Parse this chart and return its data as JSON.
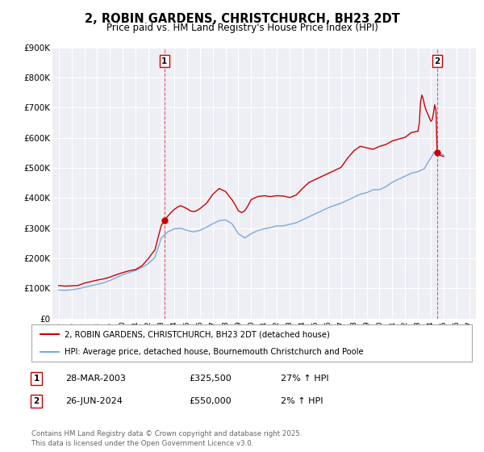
{
  "title": "2, ROBIN GARDENS, CHRISTCHURCH, BH23 2DT",
  "subtitle": "Price paid vs. HM Land Registry's House Price Index (HPI)",
  "title_fontsize": 10.5,
  "subtitle_fontsize": 9,
  "background_color": "#ffffff",
  "plot_bg_color": "#eeeef5",
  "grid_color": "#ffffff",
  "red_line_color": "#cc0000",
  "blue_line_color": "#7aaadd",
  "marker1_year": 2003.23,
  "marker1_value": 325500,
  "marker2_year": 2024.49,
  "marker2_value": 550000,
  "vline1_year": 2003.23,
  "vline2_year": 2024.49,
  "ylim": [
    0,
    900000
  ],
  "xlim": [
    1994.5,
    2027.5
  ],
  "ytick_labels": [
    "£0",
    "£100K",
    "£200K",
    "£300K",
    "£400K",
    "£500K",
    "£600K",
    "£700K",
    "£800K",
    "£900K"
  ],
  "ytick_values": [
    0,
    100000,
    200000,
    300000,
    400000,
    500000,
    600000,
    700000,
    800000,
    900000
  ],
  "xtick_values": [
    1995,
    1996,
    1997,
    1998,
    1999,
    2000,
    2001,
    2002,
    2003,
    2004,
    2005,
    2006,
    2007,
    2008,
    2009,
    2010,
    2011,
    2012,
    2013,
    2014,
    2015,
    2016,
    2017,
    2018,
    2019,
    2020,
    2021,
    2022,
    2023,
    2024,
    2025,
    2026,
    2027
  ],
  "legend_line1": "2, ROBIN GARDENS, CHRISTCHURCH, BH23 2DT (detached house)",
  "legend_line2": "HPI: Average price, detached house, Bournemouth Christchurch and Poole",
  "table_row1": [
    "1",
    "28-MAR-2003",
    "£325,500",
    "27% ↑ HPI"
  ],
  "table_row2": [
    "2",
    "26-JUN-2024",
    "£550,000",
    "2% ↑ HPI"
  ],
  "footnote": "Contains HM Land Registry data © Crown copyright and database right 2025.\nThis data is licensed under the Open Government Licence v3.0.",
  "red_hpi_data": [
    [
      1995.0,
      110000
    ],
    [
      1995.25,
      109000
    ],
    [
      1995.5,
      108000
    ],
    [
      1995.75,
      108500
    ],
    [
      1996.0,
      109000
    ],
    [
      1996.5,
      110000
    ],
    [
      1997.0,
      118000
    ],
    [
      1997.5,
      123000
    ],
    [
      1998.0,
      128000
    ],
    [
      1998.5,
      132000
    ],
    [
      1999.0,
      138000
    ],
    [
      1999.5,
      146000
    ],
    [
      2000.0,
      153000
    ],
    [
      2000.5,
      159000
    ],
    [
      2001.0,
      163000
    ],
    [
      2001.5,
      176000
    ],
    [
      2002.0,
      200000
    ],
    [
      2002.25,
      215000
    ],
    [
      2002.5,
      228000
    ],
    [
      2002.75,
      270000
    ],
    [
      2003.0,
      310000
    ],
    [
      2003.23,
      325500
    ],
    [
      2003.5,
      340000
    ],
    [
      2003.75,
      352000
    ],
    [
      2004.0,
      362000
    ],
    [
      2004.25,
      370000
    ],
    [
      2004.5,
      375000
    ],
    [
      2004.75,
      370000
    ],
    [
      2005.0,
      365000
    ],
    [
      2005.25,
      358000
    ],
    [
      2005.5,
      355000
    ],
    [
      2005.75,
      358000
    ],
    [
      2006.0,
      365000
    ],
    [
      2006.5,
      382000
    ],
    [
      2007.0,
      412000
    ],
    [
      2007.5,
      432000
    ],
    [
      2008.0,
      422000
    ],
    [
      2008.25,
      408000
    ],
    [
      2008.5,
      395000
    ],
    [
      2008.75,
      378000
    ],
    [
      2009.0,
      358000
    ],
    [
      2009.25,
      352000
    ],
    [
      2009.5,
      358000
    ],
    [
      2009.75,
      375000
    ],
    [
      2010.0,
      395000
    ],
    [
      2010.5,
      405000
    ],
    [
      2011.0,
      408000
    ],
    [
      2011.5,
      405000
    ],
    [
      2012.0,
      408000
    ],
    [
      2012.5,
      407000
    ],
    [
      2013.0,
      402000
    ],
    [
      2013.5,
      410000
    ],
    [
      2014.0,
      432000
    ],
    [
      2014.5,
      452000
    ],
    [
      2015.0,
      462000
    ],
    [
      2015.5,
      472000
    ],
    [
      2016.0,
      482000
    ],
    [
      2016.5,
      492000
    ],
    [
      2017.0,
      502000
    ],
    [
      2017.5,
      532000
    ],
    [
      2018.0,
      557000
    ],
    [
      2018.5,
      572000
    ],
    [
      2019.0,
      567000
    ],
    [
      2019.5,
      562000
    ],
    [
      2020.0,
      572000
    ],
    [
      2020.5,
      578000
    ],
    [
      2021.0,
      590000
    ],
    [
      2021.5,
      596000
    ],
    [
      2022.0,
      602000
    ],
    [
      2022.5,
      618000
    ],
    [
      2023.0,
      622000
    ],
    [
      2023.1,
      650000
    ],
    [
      2023.2,
      720000
    ],
    [
      2023.3,
      742000
    ],
    [
      2023.4,
      730000
    ],
    [
      2023.5,
      710000
    ],
    [
      2023.6,
      695000
    ],
    [
      2023.75,
      680000
    ],
    [
      2023.9,
      665000
    ],
    [
      2024.0,
      655000
    ],
    [
      2024.1,
      660000
    ],
    [
      2024.2,
      680000
    ],
    [
      2024.3,
      710000
    ],
    [
      2024.4,
      690000
    ],
    [
      2024.49,
      550000
    ],
    [
      2024.6,
      545000
    ],
    [
      2024.75,
      542000
    ],
    [
      2025.0,
      538000
    ]
  ],
  "blue_hpi_data": [
    [
      1995.0,
      95000
    ],
    [
      1995.5,
      94000
    ],
    [
      1996.0,
      96000
    ],
    [
      1996.5,
      99000
    ],
    [
      1997.0,
      104000
    ],
    [
      1997.5,
      109000
    ],
    [
      1998.0,
      114000
    ],
    [
      1998.5,
      119000
    ],
    [
      1999.0,
      127000
    ],
    [
      1999.5,
      136000
    ],
    [
      2000.0,
      146000
    ],
    [
      2000.5,
      153000
    ],
    [
      2001.0,
      160000
    ],
    [
      2001.5,
      170000
    ],
    [
      2002.0,
      183000
    ],
    [
      2002.5,
      203000
    ],
    [
      2003.0,
      268000
    ],
    [
      2003.5,
      288000
    ],
    [
      2004.0,
      298000
    ],
    [
      2004.5,
      300000
    ],
    [
      2005.0,
      293000
    ],
    [
      2005.5,
      288000
    ],
    [
      2006.0,
      293000
    ],
    [
      2006.5,
      303000
    ],
    [
      2007.0,
      315000
    ],
    [
      2007.5,
      325000
    ],
    [
      2008.0,
      328000
    ],
    [
      2008.5,
      315000
    ],
    [
      2009.0,
      282000
    ],
    [
      2009.5,
      268000
    ],
    [
      2010.0,
      282000
    ],
    [
      2010.5,
      292000
    ],
    [
      2011.0,
      298000
    ],
    [
      2011.5,
      302000
    ],
    [
      2012.0,
      308000
    ],
    [
      2012.5,
      308000
    ],
    [
      2013.0,
      313000
    ],
    [
      2013.5,
      318000
    ],
    [
      2014.0,
      328000
    ],
    [
      2014.5,
      338000
    ],
    [
      2015.0,
      348000
    ],
    [
      2015.5,
      358000
    ],
    [
      2016.0,
      368000
    ],
    [
      2016.5,
      376000
    ],
    [
      2017.0,
      383000
    ],
    [
      2017.5,
      393000
    ],
    [
      2018.0,
      403000
    ],
    [
      2018.5,
      413000
    ],
    [
      2019.0,
      418000
    ],
    [
      2019.5,
      428000
    ],
    [
      2020.0,
      428000
    ],
    [
      2020.5,
      438000
    ],
    [
      2021.0,
      453000
    ],
    [
      2021.5,
      463000
    ],
    [
      2022.0,
      473000
    ],
    [
      2022.5,
      483000
    ],
    [
      2023.0,
      488000
    ],
    [
      2023.5,
      498000
    ],
    [
      2023.75,
      518000
    ],
    [
      2024.0,
      533000
    ],
    [
      2024.25,
      553000
    ],
    [
      2024.49,
      550000
    ],
    [
      2024.75,
      548000
    ],
    [
      2025.0,
      543000
    ]
  ]
}
